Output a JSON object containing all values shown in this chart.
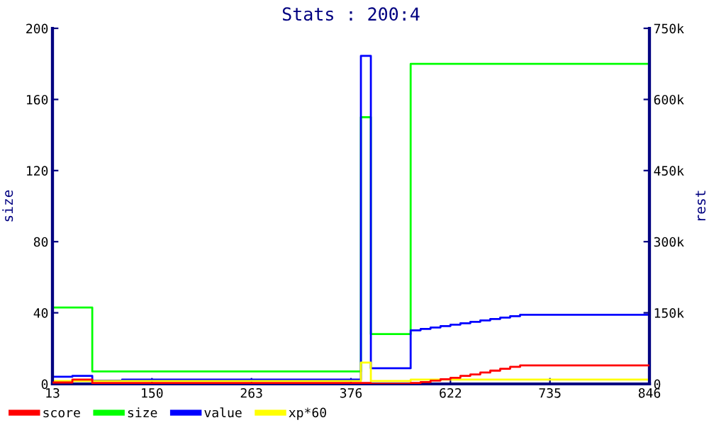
{
  "chart_data": {
    "type": "step",
    "title": "Stats : 200:4",
    "ylabel": "size",
    "y2label": "rest",
    "categories": [
      "13",
      null,
      null,
      null,
      null,
      null,
      null,
      null,
      null,
      null,
      "150",
      null,
      null,
      null,
      null,
      null,
      null,
      null,
      null,
      null,
      "263",
      null,
      null,
      null,
      null,
      null,
      null,
      null,
      null,
      null,
      "376",
      null,
      null,
      null,
      null,
      null,
      null,
      null,
      null,
      null,
      "622",
      null,
      null,
      null,
      null,
      null,
      null,
      null,
      null,
      null,
      "735",
      null,
      null,
      null,
      null,
      null,
      null,
      null,
      null,
      null,
      "846"
    ],
    "ylim": [
      0,
      200
    ],
    "yticks": [
      0,
      40,
      80,
      120,
      160,
      200
    ],
    "y2lim": [
      0,
      750000
    ],
    "y2ticks": [
      {
        "value": 0,
        "label": "0"
      },
      {
        "value": 150000,
        "label": "150k"
      },
      {
        "value": 300000,
        "label": "300k"
      },
      {
        "value": 450000,
        "label": "450k"
      },
      {
        "value": 600000,
        "label": "600k"
      },
      {
        "value": 750000,
        "label": "750k"
      }
    ],
    "series": [
      {
        "name": "score",
        "color": "#ff0000",
        "axis": "y2",
        "values": [
          3000,
          3000,
          9000,
          9000,
          2000,
          2000,
          2000,
          2000,
          2000,
          2000,
          2000,
          2000,
          2000,
          2000,
          2000,
          2000,
          2000,
          2000,
          2000,
          2000,
          2000,
          2000,
          2000,
          2000,
          2000,
          2000,
          2000,
          2000,
          2000,
          2000,
          2000,
          2000,
          0,
          0,
          0,
          0,
          2000,
          4000,
          7000,
          10000,
          13000,
          17000,
          20000,
          24000,
          28000,
          32000,
          36000,
          39000,
          39000,
          39000,
          39000,
          39000,
          39000,
          39000,
          39000,
          39000,
          39000,
          39000,
          39000,
          39000,
          39000
        ]
      },
      {
        "name": "size",
        "color": "#00ff00",
        "values": [
          43,
          43,
          43,
          43,
          7,
          7,
          7,
          7,
          7,
          7,
          7,
          7,
          7,
          7,
          7,
          7,
          7,
          7,
          7,
          7,
          7,
          7,
          7,
          7,
          7,
          7,
          7,
          7,
          7,
          7,
          7,
          150,
          28,
          28,
          28,
          28,
          180,
          180,
          180,
          180,
          180,
          180,
          180,
          180,
          180,
          180,
          180,
          180,
          180,
          180,
          180,
          180,
          180,
          180,
          180,
          180,
          180,
          180,
          180,
          180,
          180
        ]
      },
      {
        "name": "value",
        "color": "#0000ff",
        "axis": "y2",
        "values": [
          15000,
          15000,
          17000,
          17000,
          7000,
          7000,
          7000,
          9000,
          9000,
          9000,
          9000,
          9000,
          9000,
          9000,
          9000,
          9000,
          9000,
          9000,
          9000,
          9000,
          9000,
          9000,
          9000,
          9000,
          9000,
          9000,
          9000,
          9000,
          9000,
          9000,
          9000,
          692000,
          33000,
          33000,
          33000,
          33000,
          113000,
          116000,
          119000,
          122000,
          125000,
          128000,
          131000,
          134000,
          137000,
          140000,
          143000,
          146000,
          146000,
          146000,
          146000,
          146000,
          146000,
          146000,
          146000,
          146000,
          146000,
          146000,
          146000,
          146000,
          146000
        ]
      },
      {
        "name": "xp*60",
        "color": "#ffff00",
        "axis": "y2",
        "values": [
          6000,
          6000,
          6000,
          6000,
          6000,
          6000,
          6000,
          6000,
          6000,
          6000,
          6000,
          6000,
          6000,
          6000,
          6000,
          6000,
          6000,
          6000,
          6000,
          6000,
          6000,
          6000,
          6000,
          6000,
          6000,
          6000,
          6000,
          6000,
          6000,
          6000,
          6000,
          45000,
          6000,
          6000,
          6000,
          6000,
          9000,
          9000,
          9000,
          9000,
          9000,
          9000,
          9000,
          9000,
          9000,
          9000,
          9000,
          9000,
          9000,
          9000,
          9000,
          9000,
          9000,
          9000,
          9000,
          9000,
          9000,
          9000,
          9000,
          9000,
          9000
        ]
      }
    ],
    "legend": "bottom",
    "grid": false
  }
}
